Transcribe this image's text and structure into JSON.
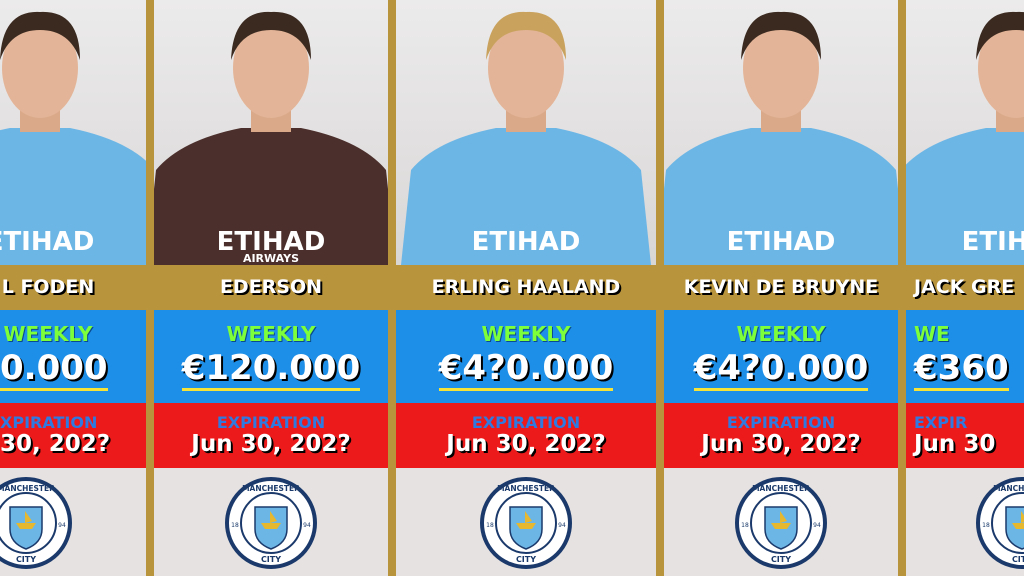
{
  "cards": [
    {
      "name": "L FODEN",
      "weekly_label": "WEEKLY",
      "salary": "0.000",
      "expiration_label": "XPIRATION",
      "expiration": "30, 202?"
    },
    {
      "name": "EDERSON",
      "weekly_label": "WEEKLY",
      "salary": "€120.000",
      "expiration_label": "EXPIRATION",
      "expiration": "Jun 30, 202?"
    },
    {
      "name": "ERLING HAALAND",
      "weekly_label": "WEEKLY",
      "salary": "€4?0.000",
      "expiration_label": "EXPIRATION",
      "expiration": "Jun 30, 202?"
    },
    {
      "name": "KEVIN DE BRUYNE",
      "weekly_label": "WEEKLY",
      "salary": "€4?0.000",
      "expiration_label": "EXPIRATION",
      "expiration": "Jun 30, 202?"
    },
    {
      "name": "JACK GRE",
      "weekly_label": "WE",
      "salary": "€360",
      "expiration_label": "EXPIR",
      "expiration": "Jun 30"
    }
  ],
  "shirt": {
    "sponsor": "ETIHAD",
    "sponsor_sub": "AIRWAYS"
  },
  "logo": {
    "top": "MANCHESTER",
    "bottom": "CITY",
    "left": "18",
    "right": "94"
  }
}
